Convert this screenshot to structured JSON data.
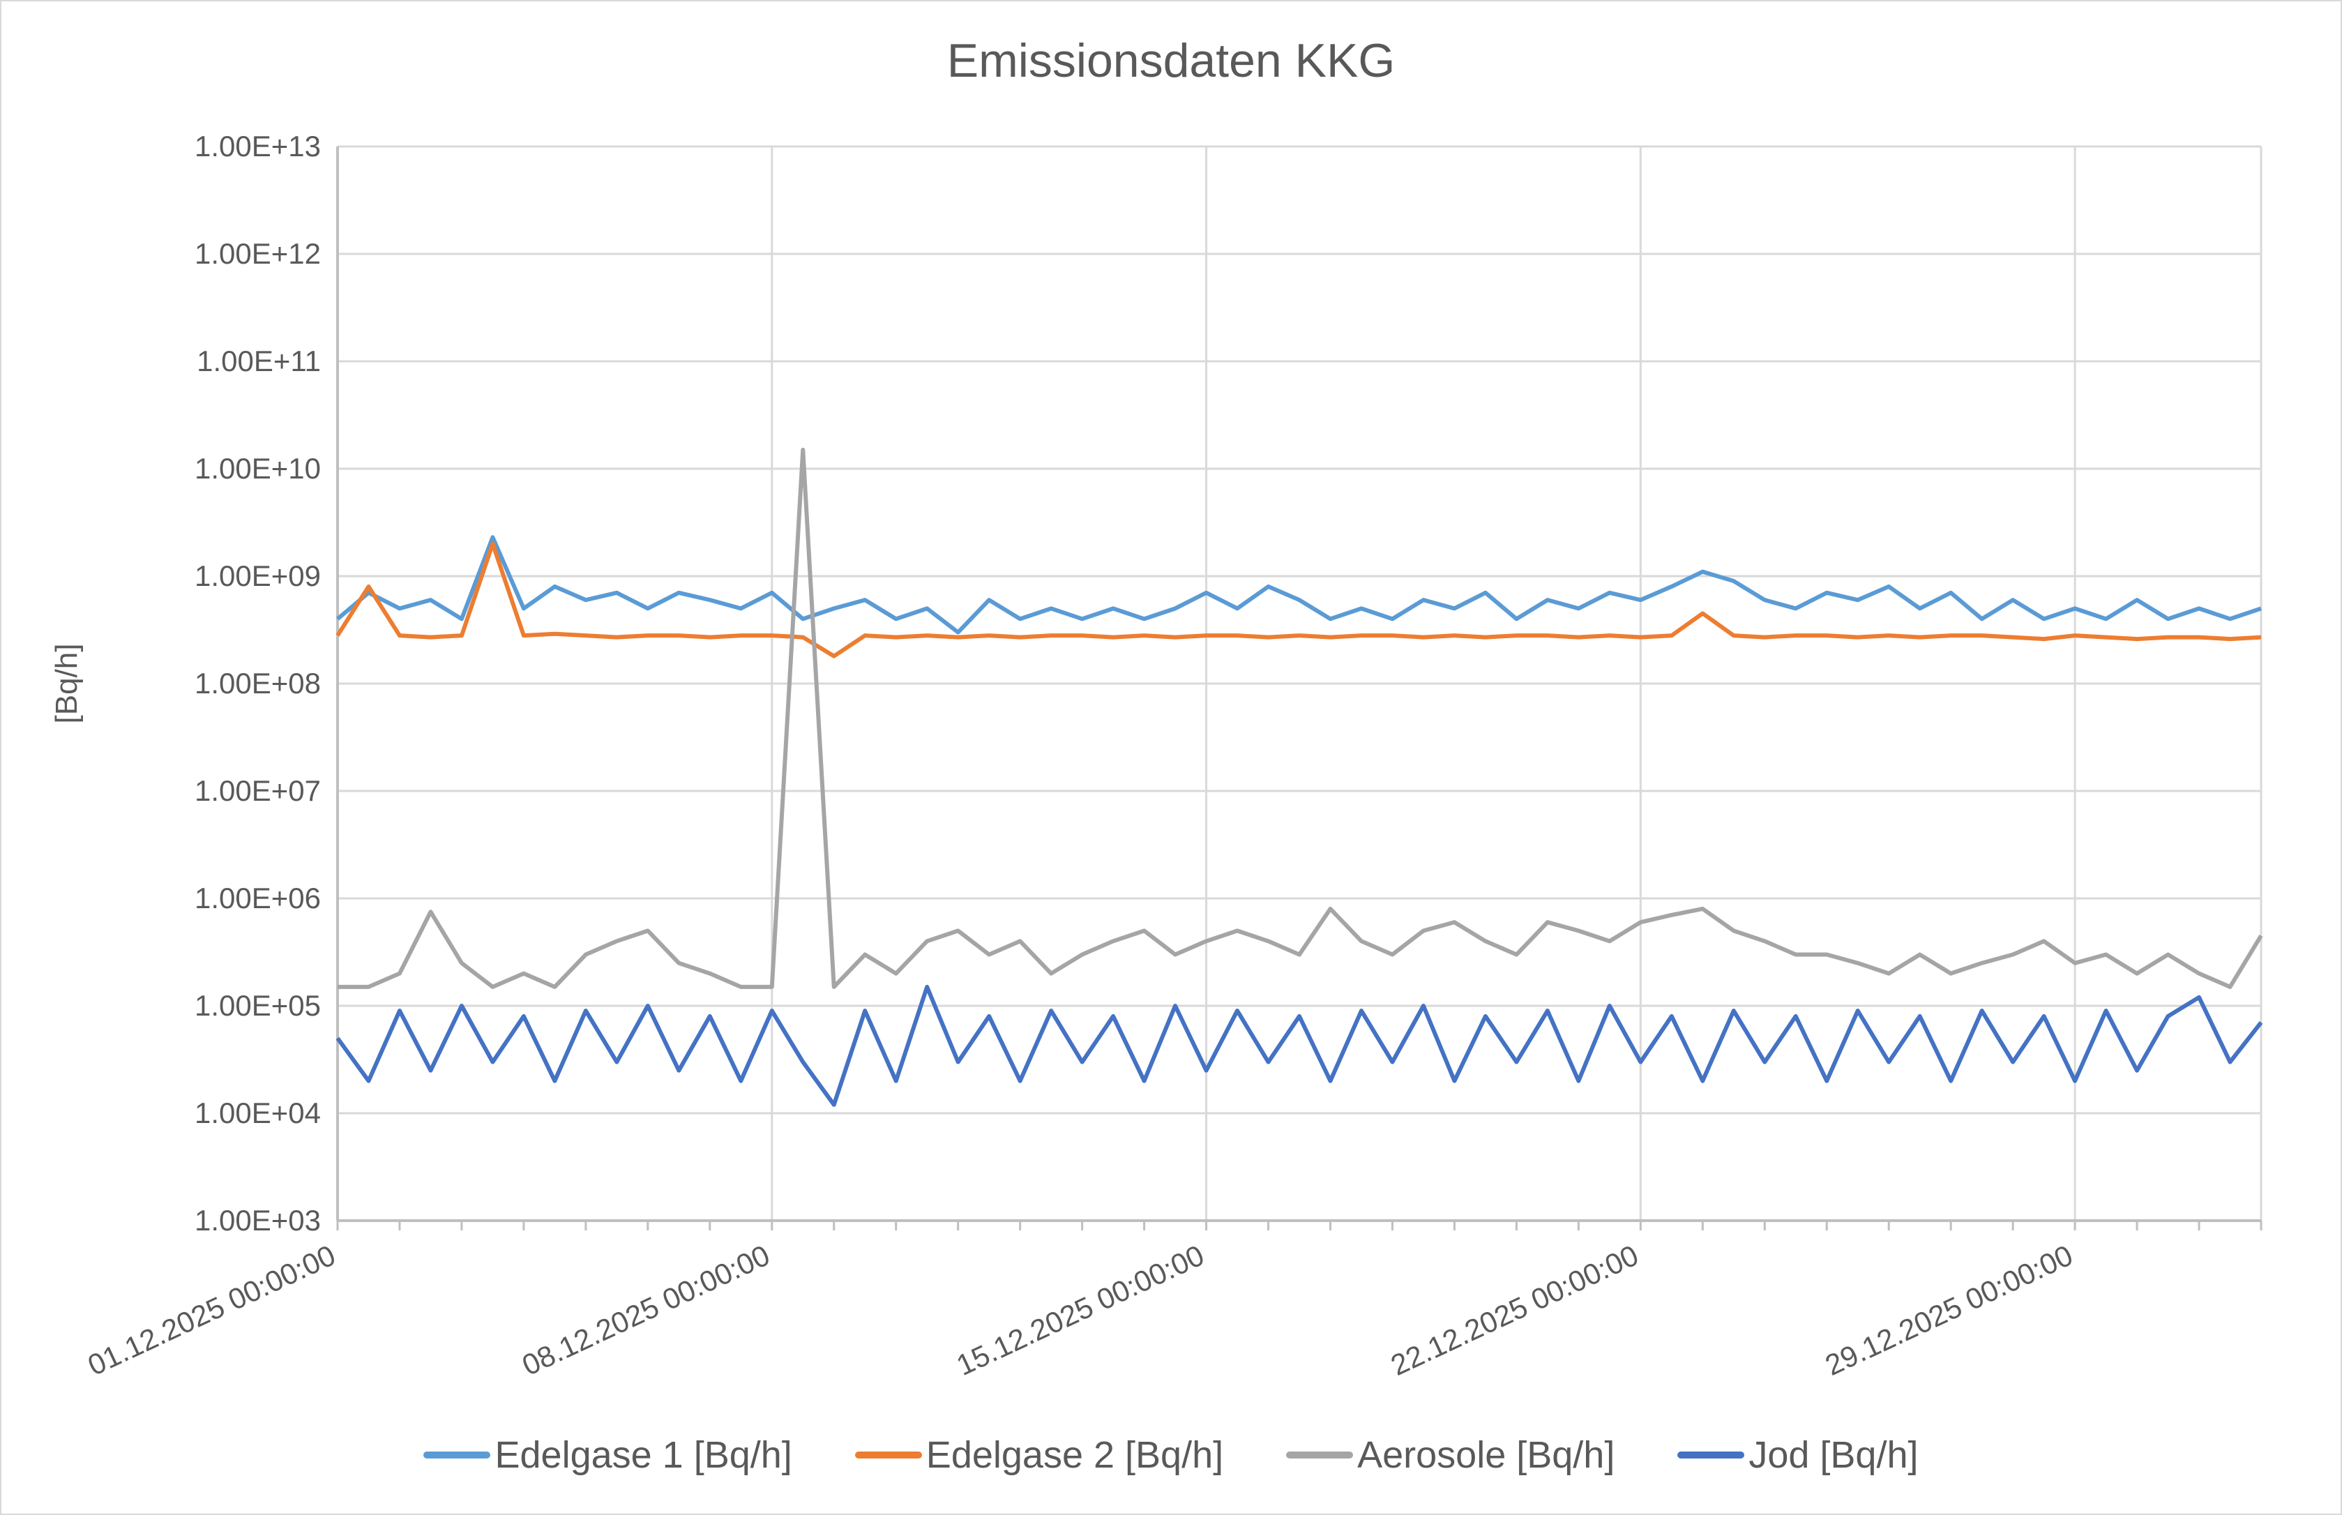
{
  "chart_data": {
    "type": "line",
    "title": "Emissionsdaten KKG",
    "xlabel": "",
    "ylabel": "[Bq/h]",
    "y_scale": "log",
    "ylim": [
      1000,
      10000000000000
    ],
    "y_tick_labels": [
      "1.00E+03",
      "1.00E+04",
      "1.00E+05",
      "1.00E+06",
      "1.00E+07",
      "1.00E+08",
      "1.00E+09",
      "1.00E+10",
      "1.00E+11",
      "1.00E+12",
      "1.00E+13"
    ],
    "xlim": [
      "01.12.2025 00:00:00",
      "01.01.2026 00:00:00"
    ],
    "x_tick_labels": [
      "01.12.2025 00:00:00",
      "08.12.2025 00:00:00",
      "15.12.2025 00:00:00",
      "22.12.2025 00:00:00",
      "29.12.2025 00:00:00"
    ],
    "x_start": "01.12.2025 00:00:00",
    "sample_interval_hours": 12,
    "grid": true,
    "legend_position": "bottom",
    "series": [
      {
        "name": "Edelgase 1 [Bq/h]",
        "color": "#5b9bd5",
        "values": [
          400000000.0,
          700000000.0,
          500000000.0,
          600000000.0,
          400000000.0,
          2300000000.0,
          500000000.0,
          800000000.0,
          600000000.0,
          700000000.0,
          500000000.0,
          700000000.0,
          600000000.0,
          500000000.0,
          700000000.0,
          400000000.0,
          500000000.0,
          600000000.0,
          400000000.0,
          500000000.0,
          300000000.0,
          600000000.0,
          400000000.0,
          500000000.0,
          400000000.0,
          500000000.0,
          400000000.0,
          500000000.0,
          700000000.0,
          500000000.0,
          800000000.0,
          600000000.0,
          400000000.0,
          500000000.0,
          400000000.0,
          600000000.0,
          500000000.0,
          700000000.0,
          400000000.0,
          600000000.0,
          500000000.0,
          700000000.0,
          600000000.0,
          800000000.0,
          1100000000.0,
          900000000.0,
          600000000.0,
          500000000.0,
          700000000.0,
          600000000.0,
          800000000.0,
          500000000.0,
          700000000.0,
          400000000.0,
          600000000.0,
          400000000.0,
          500000000.0,
          400000000.0,
          600000000.0,
          400000000.0,
          500000000.0,
          400000000.0,
          500000000.0
        ]
      },
      {
        "name": "Edelgase 2 [Bq/h]",
        "color": "#ed7d31",
        "values": [
          280000000.0,
          800000000.0,
          280000000.0,
          270000000.0,
          280000000.0,
          2000000000.0,
          280000000.0,
          290000000.0,
          280000000.0,
          270000000.0,
          280000000.0,
          280000000.0,
          270000000.0,
          280000000.0,
          280000000.0,
          270000000.0,
          180000000.0,
          280000000.0,
          270000000.0,
          280000000.0,
          270000000.0,
          280000000.0,
          270000000.0,
          280000000.0,
          280000000.0,
          270000000.0,
          280000000.0,
          270000000.0,
          280000000.0,
          280000000.0,
          270000000.0,
          280000000.0,
          270000000.0,
          280000000.0,
          280000000.0,
          270000000.0,
          280000000.0,
          270000000.0,
          280000000.0,
          280000000.0,
          270000000.0,
          280000000.0,
          270000000.0,
          280000000.0,
          450000000.0,
          280000000.0,
          270000000.0,
          280000000.0,
          280000000.0,
          270000000.0,
          280000000.0,
          270000000.0,
          280000000.0,
          280000000.0,
          270000000.0,
          260000000.0,
          280000000.0,
          270000000.0,
          260000000.0,
          270000000.0,
          270000000.0,
          260000000.0,
          270000000.0
        ]
      },
      {
        "name": "Aerosole [Bq/h]",
        "color": "#a5a5a5",
        "values": [
          150000.0,
          150000.0,
          200000.0,
          750000.0,
          250000.0,
          150000.0,
          200000.0,
          150000.0,
          300000.0,
          400000.0,
          500000.0,
          250000.0,
          200000.0,
          150000.0,
          150000.0,
          15000000000.0,
          150000.0,
          300000.0,
          200000.0,
          400000.0,
          500000.0,
          300000.0,
          400000.0,
          200000.0,
          300000.0,
          400000.0,
          500000.0,
          300000.0,
          400000.0,
          500000.0,
          400000.0,
          300000.0,
          800000.0,
          400000.0,
          300000.0,
          500000.0,
          600000.0,
          400000.0,
          300000.0,
          600000.0,
          500000.0,
          400000.0,
          600000.0,
          700000.0,
          800000.0,
          500000.0,
          400000.0,
          300000.0,
          300000.0,
          250000.0,
          200000.0,
          300000.0,
          200000.0,
          250000.0,
          300000.0,
          400000.0,
          250000.0,
          300000.0,
          200000.0,
          300000.0,
          200000.0,
          150000.0,
          450000.0
        ]
      },
      {
        "name": "Jod [Bq/h]",
        "color": "#4472c4",
        "values": [
          50000.0,
          20000.0,
          90000.0,
          25000.0,
          100000.0,
          30000.0,
          80000.0,
          20000.0,
          90000.0,
          30000.0,
          100000.0,
          25000.0,
          80000.0,
          20000.0,
          90000.0,
          30000.0,
          12000.0,
          90000.0,
          20000.0,
          150000.0,
          30000.0,
          80000.0,
          20000.0,
          90000.0,
          30000.0,
          80000.0,
          20000.0,
          100000.0,
          25000.0,
          90000.0,
          30000.0,
          80000.0,
          20000.0,
          90000.0,
          30000.0,
          100000.0,
          20000.0,
          80000.0,
          30000.0,
          90000.0,
          20000.0,
          100000.0,
          30000.0,
          80000.0,
          20000.0,
          90000.0,
          30000.0,
          80000.0,
          20000.0,
          90000.0,
          30000.0,
          80000.0,
          20000.0,
          90000.0,
          30000.0,
          80000.0,
          20000.0,
          90000.0,
          25000.0,
          80000.0,
          120000.0,
          30000.0,
          70000.0
        ]
      }
    ]
  }
}
